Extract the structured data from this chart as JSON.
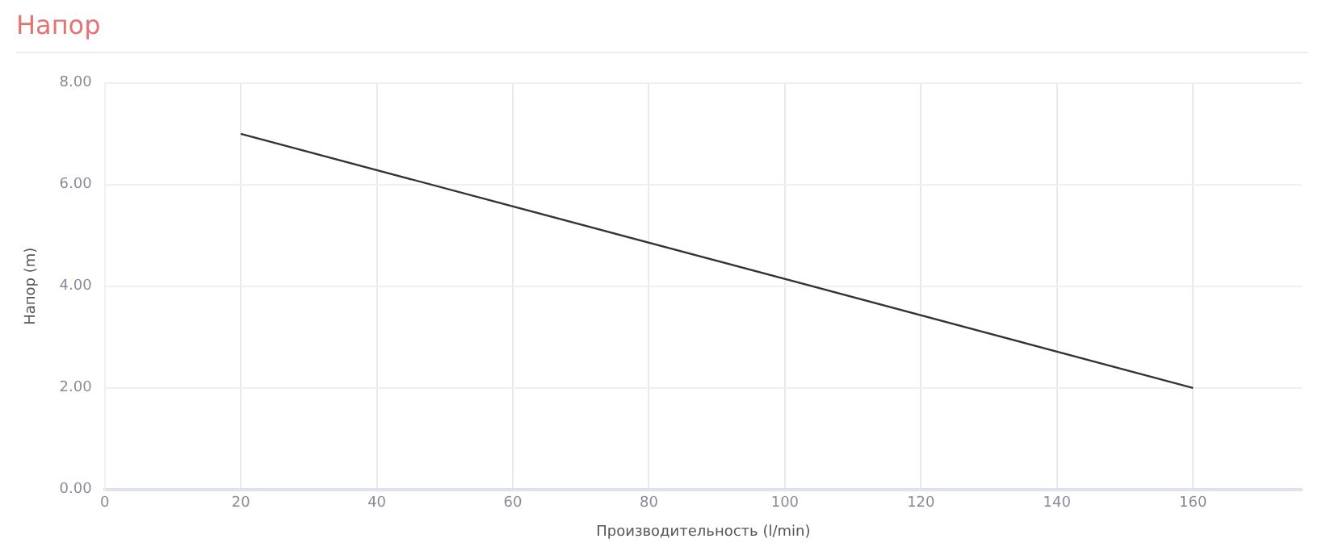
{
  "chart_data": {
    "type": "line",
    "title": "Напор",
    "xlabel": "Производительность (l/min)",
    "ylabel": "Напор (m)",
    "x": [
      20,
      160
    ],
    "series": [
      {
        "color": "#333333",
        "values": [
          7,
          2
        ]
      }
    ],
    "xlim": [
      0,
      176
    ],
    "xticks": [
      0,
      20,
      40,
      60,
      80,
      100,
      120,
      140,
      160
    ],
    "ylim": [
      0,
      8
    ],
    "yticks": [
      {
        "value": 0,
        "label": "0.00"
      },
      {
        "value": 2,
        "label": "2.00"
      },
      {
        "value": 4,
        "label": "4.00"
      },
      {
        "value": 6,
        "label": "6.00"
      },
      {
        "value": 8,
        "label": "8.00"
      }
    ],
    "grid": true,
    "legend": false,
    "marker": "none",
    "line_style": "solid"
  }
}
